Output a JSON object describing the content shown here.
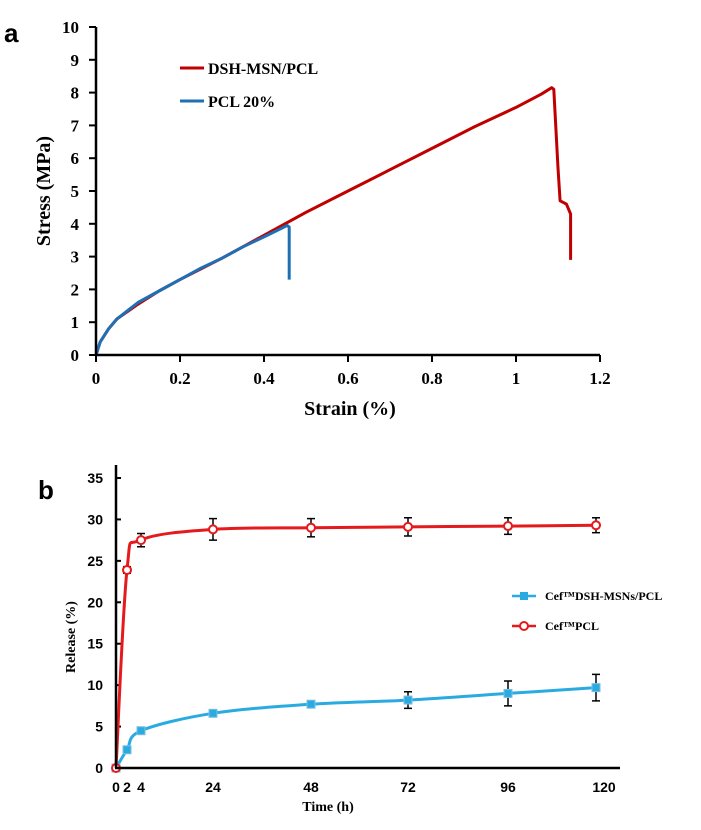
{
  "panel_a_label": "a",
  "panel_b_label": "b",
  "chart_data": [
    {
      "type": "line",
      "panel": "a",
      "title": "",
      "xlabel": "Strain (%)",
      "ylabel": "Stress (MPa)",
      "xlim": [
        0,
        1.2
      ],
      "ylim": [
        0,
        10
      ],
      "xticks": [
        "0",
        "0.2",
        "0.4",
        "0.6",
        "0.8",
        "1",
        "1.2"
      ],
      "yticks": [
        "0",
        "1",
        "2",
        "3",
        "4",
        "5",
        "6",
        "7",
        "8",
        "9",
        "10"
      ],
      "legend_position": "top-left",
      "series": [
        {
          "name": "DSH-MSN/PCL",
          "color": "#c00000",
          "points": [
            [
              0,
              0
            ],
            [
              0.01,
              0.4
            ],
            [
              0.03,
              0.8
            ],
            [
              0.05,
              1.1
            ],
            [
              0.1,
              1.55
            ],
            [
              0.15,
              1.95
            ],
            [
              0.2,
              2.3
            ],
            [
              0.3,
              2.95
            ],
            [
              0.4,
              3.65
            ],
            [
              0.5,
              4.35
            ],
            [
              0.6,
              5.0
            ],
            [
              0.7,
              5.65
            ],
            [
              0.8,
              6.3
            ],
            [
              0.9,
              6.95
            ],
            [
              1.0,
              7.55
            ],
            [
              1.06,
              7.95
            ],
            [
              1.085,
              8.15
            ],
            [
              1.09,
              8.1
            ],
            [
              1.1,
              5.7
            ],
            [
              1.105,
              4.7
            ],
            [
              1.12,
              4.6
            ],
            [
              1.13,
              4.3
            ],
            [
              1.13,
              2.9
            ]
          ]
        },
        {
          "name": "PCL 20%",
          "color": "#1f6fb5",
          "points": [
            [
              0,
              0
            ],
            [
              0.01,
              0.4
            ],
            [
              0.03,
              0.8
            ],
            [
              0.05,
              1.1
            ],
            [
              0.1,
              1.6
            ],
            [
              0.15,
              1.95
            ],
            [
              0.2,
              2.3
            ],
            [
              0.25,
              2.65
            ],
            [
              0.3,
              2.95
            ],
            [
              0.35,
              3.3
            ],
            [
              0.4,
              3.6
            ],
            [
              0.44,
              3.85
            ],
            [
              0.455,
              3.95
            ],
            [
              0.46,
              3.9
            ],
            [
              0.46,
              2.3
            ]
          ]
        }
      ]
    },
    {
      "type": "line",
      "panel": "b",
      "title": "",
      "xlabel": "Time (h)",
      "ylabel": "Release (%)",
      "xlim": [
        0,
        120
      ],
      "ylim": [
        0,
        35
      ],
      "xticks": [
        "0",
        "2",
        "4",
        "24",
        "48",
        "72",
        "96",
        "120"
      ],
      "xtick_values": [
        0,
        2,
        4,
        24,
        48,
        72,
        96,
        120
      ],
      "yticks": [
        "0",
        "5",
        "10",
        "15",
        "20",
        "25",
        "30",
        "35"
      ],
      "legend_position": "right",
      "series": [
        {
          "name": "Cef™DSH-MSNs/PCL",
          "color": "#29abe2",
          "marker": "square",
          "x": [
            0,
            2,
            4,
            24,
            48,
            72,
            96,
            118
          ],
          "y": [
            0,
            2.2,
            4.5,
            6.6,
            7.7,
            8.2,
            9.0,
            9.7
          ],
          "error": [
            0,
            0.3,
            0.3,
            0.3,
            0.3,
            1.0,
            1.5,
            1.6
          ]
        },
        {
          "name": "Cef™PCL",
          "color": "#e41a1c",
          "marker": "circle",
          "x": [
            0,
            2,
            4,
            24,
            48,
            72,
            96,
            118
          ],
          "y": [
            0,
            23.9,
            27.5,
            28.8,
            29.0,
            29.1,
            29.2,
            29.3
          ],
          "error": [
            0,
            0.4,
            0.8,
            1.3,
            1.1,
            1.1,
            1.0,
            0.9
          ]
        }
      ]
    }
  ]
}
